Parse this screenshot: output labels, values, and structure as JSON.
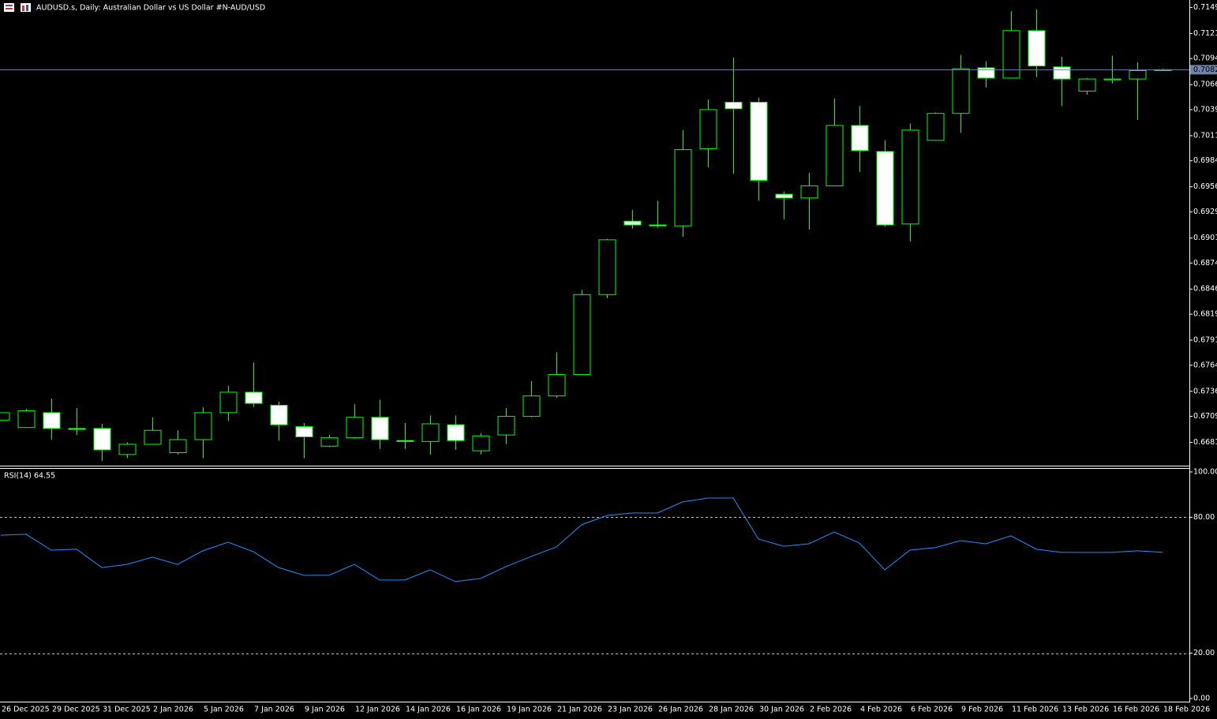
{
  "chart_data": [
    {
      "type": "candlestick",
      "title": "AUDUSD.s, Daily:  Australian Dollar vs US Dollar #N-AUD/USD",
      "categories": [
        "26 Dec 2025",
        null,
        "29 Dec 2025",
        null,
        "31 Dec 2025",
        null,
        "2 Jan 2026",
        null,
        "5 Jan 2026",
        null,
        "7 Jan 2026",
        null,
        "9 Jan 2026",
        null,
        "12 Jan 2026",
        null,
        "14 Jan 2026",
        null,
        "16 Jan 2026",
        null,
        "19 Jan 2026",
        null,
        "21 Jan 2026",
        null,
        "23 Jan 2026",
        null,
        "26 Jan 2026",
        null,
        "28 Jan 2026",
        null,
        "30 Jan 2026",
        null,
        "2 Feb 2026",
        null,
        "4 Feb 2026",
        null,
        "6 Feb 2026",
        null,
        "9 Feb 2026",
        null,
        "11 Feb 2026",
        null,
        "13 Feb 2026",
        null,
        "16 Feb 2026",
        null,
        "18 Feb 2026"
      ],
      "open": [
        0.6705,
        0.6697,
        0.6713,
        0.6696,
        0.6696,
        0.6668,
        0.6679,
        0.667,
        0.6684,
        0.6713,
        0.6735,
        0.6721,
        0.6698,
        0.6677,
        0.6686,
        0.6708,
        0.6683,
        0.6682,
        0.67,
        0.6672,
        0.6689,
        0.6709,
        0.6731,
        0.6754,
        0.684,
        0.6919,
        0.6915,
        0.6914,
        0.6997,
        0.7047,
        0.7047,
        0.6948,
        0.6944,
        0.6957,
        0.7022,
        0.6994,
        0.6916,
        0.7006,
        0.7035,
        0.7084,
        0.7073,
        0.7124,
        0.7085,
        0.7059,
        0.7071,
        0.7072,
        0.7081
      ],
      "high": [
        0.6713,
        0.6717,
        0.6728,
        0.6718,
        0.6701,
        0.6681,
        0.6708,
        0.6694,
        0.6719,
        0.6742,
        0.6767,
        0.6725,
        0.6702,
        0.6689,
        0.6722,
        0.6727,
        0.6702,
        0.671,
        0.671,
        0.6691,
        0.6718,
        0.6747,
        0.6778,
        0.6845,
        0.69,
        0.6931,
        0.6941,
        0.7017,
        0.705,
        0.7095,
        0.7052,
        0.6951,
        0.6971,
        0.7051,
        0.7043,
        0.7006,
        0.7024,
        0.7036,
        0.7098,
        0.7091,
        0.7145,
        0.7147,
        0.7096,
        0.7073,
        0.7097,
        0.709,
        0.7083
      ],
      "low": [
        0.6705,
        0.6697,
        0.6684,
        0.6689,
        0.6661,
        0.6664,
        0.6679,
        0.6668,
        0.6664,
        0.6704,
        0.6719,
        0.6683,
        0.6664,
        0.6676,
        0.6685,
        0.6674,
        0.6674,
        0.6668,
        0.6673,
        0.6668,
        0.6679,
        0.6708,
        0.6729,
        0.6754,
        0.6836,
        0.6911,
        0.6912,
        0.6902,
        0.6977,
        0.697,
        0.6941,
        0.6921,
        0.691,
        0.6957,
        0.6972,
        0.6913,
        0.6897,
        0.7006,
        0.7014,
        0.7063,
        0.7073,
        0.7074,
        0.7043,
        0.7055,
        0.7067,
        0.7028,
        0.7081
      ],
      "close": [
        0.6713,
        0.6715,
        0.6696,
        0.6695,
        0.6673,
        0.6679,
        0.6694,
        0.6684,
        0.6713,
        0.6735,
        0.6723,
        0.67,
        0.6687,
        0.6686,
        0.6708,
        0.6684,
        0.6682,
        0.6701,
        0.6683,
        0.6688,
        0.6709,
        0.6731,
        0.6754,
        0.684,
        0.6899,
        0.6915,
        0.6914,
        0.6996,
        0.7039,
        0.704,
        0.6963,
        0.6944,
        0.6957,
        0.7022,
        0.6995,
        0.6915,
        0.7017,
        0.7035,
        0.7083,
        0.7073,
        0.7124,
        0.7086,
        0.7072,
        0.7072,
        0.7072,
        0.7081,
        0.7082
      ],
      "ylim": [
        0.6656,
        0.7157
      ],
      "yticks": [
        0.7149,
        0.7121,
        0.7094,
        0.7066,
        0.7039,
        0.7011,
        0.6984,
        0.6956,
        0.6929,
        0.6901,
        0.6874,
        0.6846,
        0.6819,
        0.6791,
        0.6764,
        0.6736,
        0.6709,
        0.6681
      ],
      "current_price": 0.7082,
      "color": "#00ff00",
      "bull_fill": "#000000",
      "bear_fill": "#ffffff",
      "price_line_color": "#6f82a8"
    },
    {
      "type": "line",
      "label": "RSI(14) 64.55",
      "values": [
        72.1,
        72.5,
        65.5,
        65.9,
        57.8,
        59.2,
        62.4,
        59.2,
        65.2,
        69.0,
        64.8,
        57.8,
        54.4,
        54.4,
        59.2,
        52.3,
        52.3,
        56.8,
        51.6,
        53.0,
        58.2,
        62.7,
        66.9,
        76.7,
        80.8,
        81.9,
        81.9,
        86.8,
        88.5,
        88.5,
        70.4,
        67.2,
        68.3,
        73.5,
        68.6,
        56.8,
        65.5,
        66.6,
        69.7,
        68.3,
        71.8,
        65.9,
        64.5,
        64.5,
        64.5,
        65.2,
        64.55
      ],
      "color": "#1e90ff",
      "ylim": [
        0,
        100
      ],
      "yticks": [
        {
          "value": 100,
          "label": "100.00"
        },
        {
          "value": 80,
          "label": "80.00"
        },
        {
          "value": 20,
          "label": "20.00"
        },
        {
          "value": 0,
          "label": "0.00"
        }
      ],
      "levels": [
        80,
        20
      ]
    }
  ]
}
